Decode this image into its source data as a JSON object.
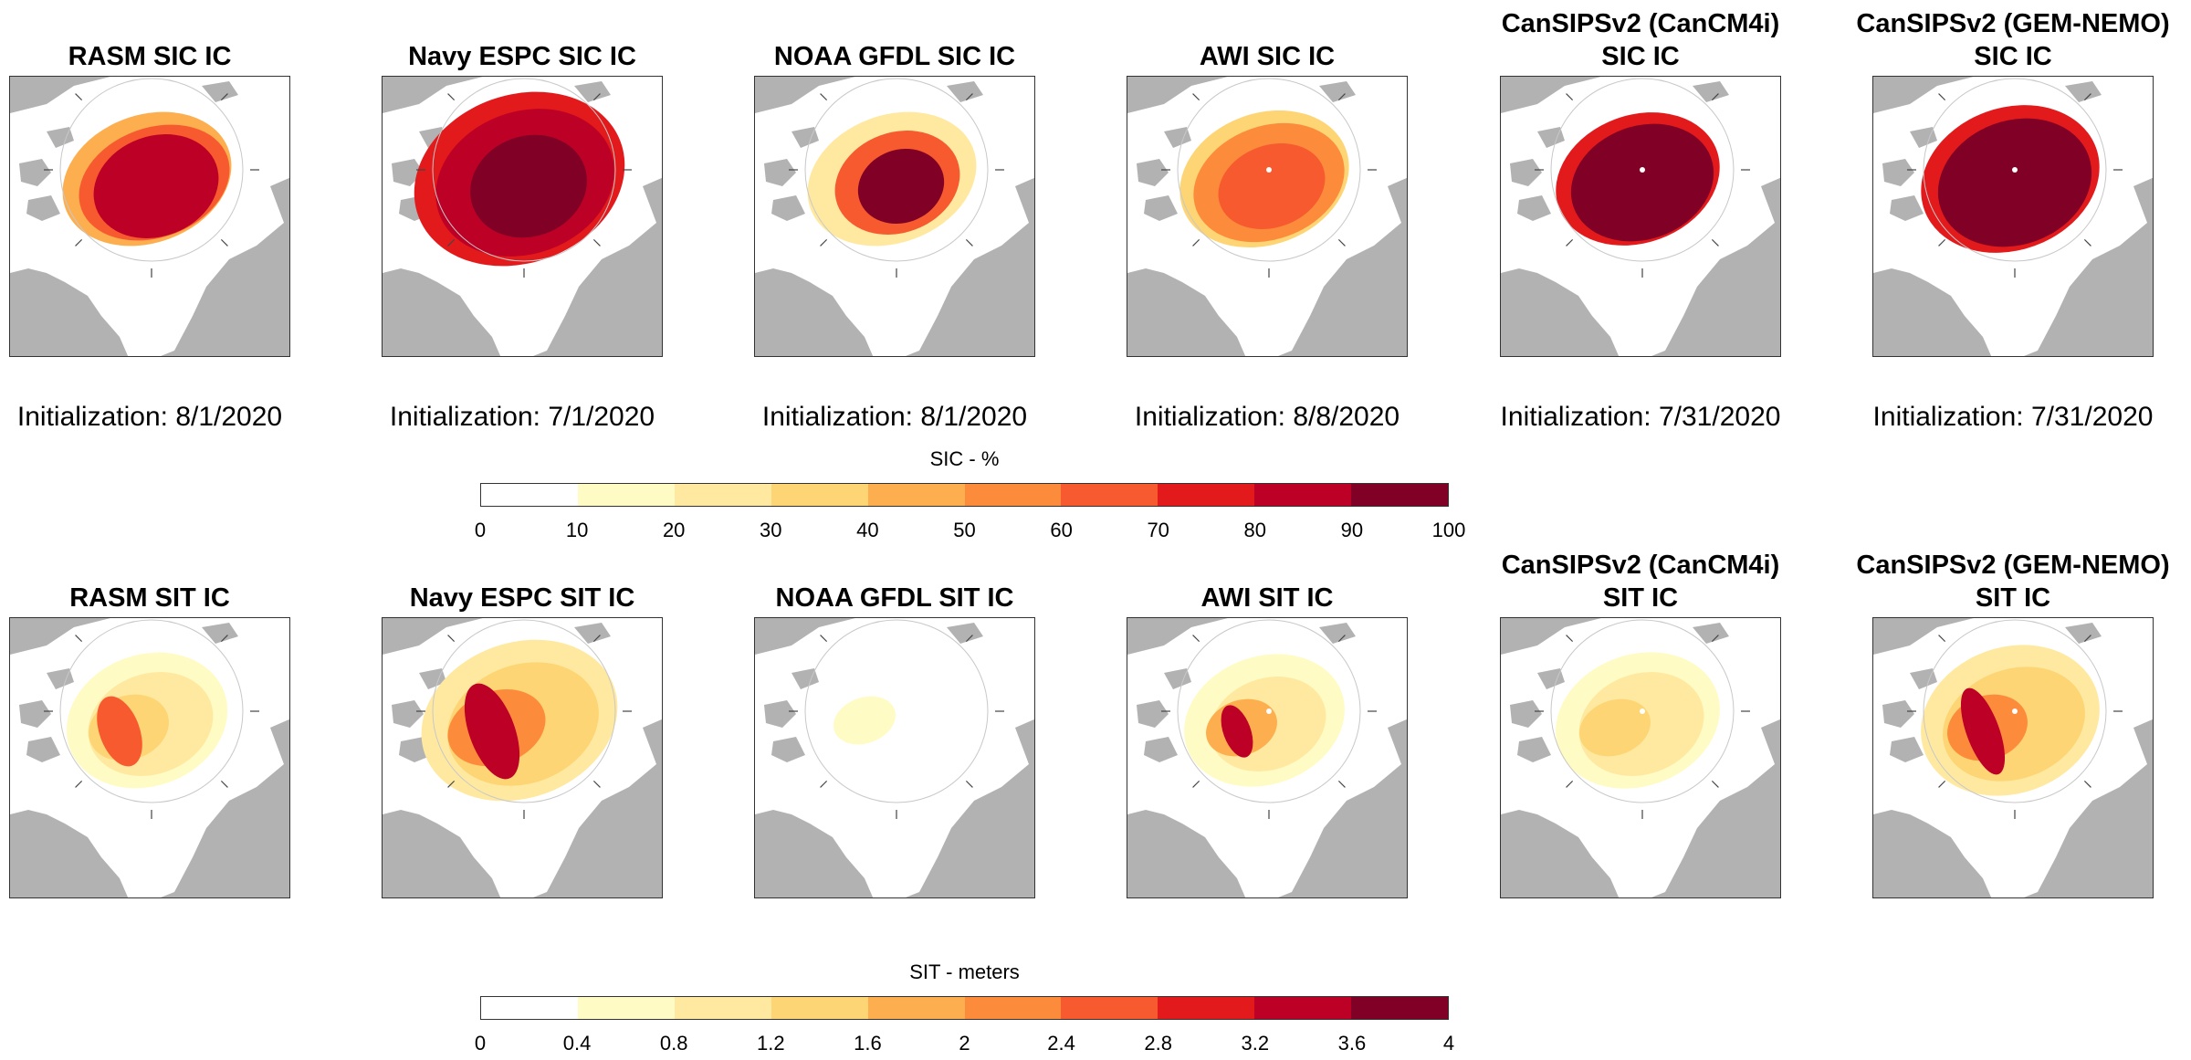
{
  "chart_data": [
    {
      "type": "heatmap",
      "description_kind": "map panels",
      "variable": "SIC",
      "panels": [
        {
          "title": [
            "RASM SIC IC"
          ],
          "initialization": "Initialization: 8/1/2020"
        },
        {
          "title": [
            "Navy ESPC SIC IC"
          ],
          "initialization": "Initialization: 7/1/2020"
        },
        {
          "title": [
            "NOAA GFDL SIC IC"
          ],
          "initialization": "Initialization: 8/1/2020"
        },
        {
          "title": [
            "AWI SIC IC"
          ],
          "initialization": "Initialization: 8/8/2020"
        },
        {
          "title": [
            "CanSIPSv2 (CanCM4i)",
            "SIC IC"
          ],
          "initialization": "Initialization: 7/31/2020"
        },
        {
          "title": [
            "CanSIPSv2 (GEM-NEMO)",
            "SIC IC"
          ],
          "initialization": "Initialization: 7/31/2020"
        }
      ],
      "colorbar": {
        "title": "SIC - %",
        "ticks": [
          "0",
          "10",
          "20",
          "30",
          "40",
          "50",
          "60",
          "70",
          "80",
          "90",
          "100"
        ],
        "colors": [
          "#ffffff",
          "#fffbc4",
          "#ffe9a1",
          "#fed574",
          "#fdae4f",
          "#fc8c3c",
          "#f75a2e",
          "#e31a1c",
          "#bd0026",
          "#800026"
        ]
      }
    },
    {
      "type": "heatmap",
      "description_kind": "map panels",
      "variable": "SIT",
      "panels": [
        {
          "title": [
            "RASM SIT IC"
          ]
        },
        {
          "title": [
            "Navy ESPC SIT IC"
          ]
        },
        {
          "title": [
            "NOAA GFDL SIT IC"
          ]
        },
        {
          "title": [
            "AWI SIT IC"
          ]
        },
        {
          "title": [
            "CanSIPSv2 (CanCM4i)",
            "SIT IC"
          ]
        },
        {
          "title": [
            "CanSIPSv2 (GEM-NEMO)",
            "SIT IC"
          ]
        }
      ],
      "colorbar": {
        "title": "SIT - meters",
        "ticks": [
          "0",
          "0.4",
          "0.8",
          "1.2",
          "1.6",
          "2",
          "2.4",
          "2.8",
          "3.2",
          "3.6",
          "4"
        ],
        "colors": [
          "#ffffff",
          "#fffbc4",
          "#ffe9a1",
          "#fed574",
          "#fdae4f",
          "#fc8c3c",
          "#f75a2e",
          "#e31a1c",
          "#bd0026",
          "#800026"
        ]
      }
    }
  ]
}
